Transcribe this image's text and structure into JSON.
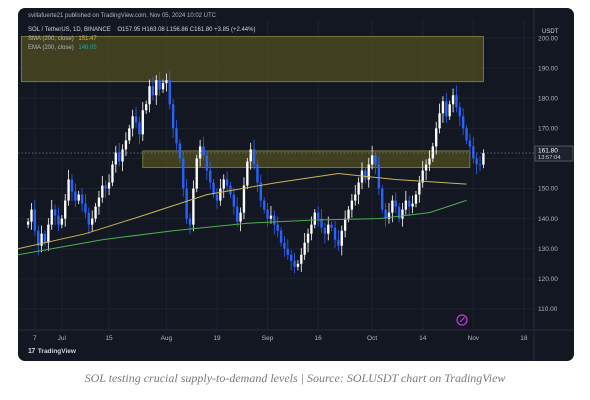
{
  "header": {
    "published": "svillafuerte21 published on TradingView.com, Nov 05, 2024 10:02 UTC",
    "symbol": "SOL / TetherUS, 1D, BINANCE",
    "ohlc": "O157.95 H163.08 L156.86 C161.80 +3.85 (+2.44%)",
    "sma_label": "SMA (200, close)",
    "sma_value": "151.47",
    "ema_label": "EMA (200, close)",
    "ema_value": "146.05",
    "currency": "USDT"
  },
  "price_labels": {
    "last_price": "161.80",
    "countdown": "13:57:04"
  },
  "footer": {
    "logo_mark": "17",
    "logo_text": "TradingView"
  },
  "caption": "SOL testing crucial supply-to-demand levels | Source: SOLUSDT chart on TradingView",
  "colors": {
    "background": "#131722",
    "up_candle": "#ffffff",
    "down_candle": "#2962ff",
    "sma_line": "#c9b458",
    "ema_line": "#4caf50",
    "zone_fill": "#504f22",
    "zone_border": "#8a8a3c",
    "price_line": "#787b86"
  },
  "chart_data": {
    "type": "candlestick",
    "title": "SOL / TetherUS, 1D, BINANCE",
    "y_axis_currency": "USDT",
    "ylim": [
      103,
      206
    ],
    "y_ticks": [
      110,
      120,
      130,
      140,
      150,
      160,
      170,
      180,
      190,
      200
    ],
    "x_start": "2024-06-25",
    "x_end": "2024-11-25",
    "x_ticks": [
      {
        "label": "7",
        "date": "2024-06-30"
      },
      {
        "label": "Jul",
        "date": "2024-07-08"
      },
      {
        "label": "15",
        "date": "2024-07-22"
      },
      {
        "label": "Aug",
        "date": "2024-08-08"
      },
      {
        "label": "19",
        "date": "2024-08-23"
      },
      {
        "label": "Sep",
        "date": "2024-09-07"
      },
      {
        "label": "16",
        "date": "2024-09-22"
      },
      {
        "label": "Oct",
        "date": "2024-10-08"
      },
      {
        "label": "14",
        "date": "2024-10-23"
      },
      {
        "label": "Nov",
        "date": "2024-11-07"
      },
      {
        "label": "18",
        "date": "2024-11-22"
      }
    ],
    "zones": [
      {
        "date_from": "2024-06-26",
        "date_to": "2024-11-10",
        "low": 185.5,
        "high": 200.5
      },
      {
        "date_from": "2024-08-01",
        "date_to": "2024-11-06",
        "low": 157,
        "high": 162.5
      }
    ],
    "last_price": 161.8,
    "series": [
      {
        "name": "SMA (200, close)",
        "points": [
          [
            "2024-06-25",
            130
          ],
          [
            "2024-07-15",
            135
          ],
          [
            "2024-08-01",
            141
          ],
          [
            "2024-08-20",
            148
          ],
          [
            "2024-09-10",
            152
          ],
          [
            "2024-09-28",
            155
          ],
          [
            "2024-10-15",
            153
          ],
          [
            "2024-11-05",
            151.47
          ]
        ]
      },
      {
        "name": "EMA (200, close)",
        "points": [
          [
            "2024-06-25",
            128
          ],
          [
            "2024-07-20",
            133
          ],
          [
            "2024-08-10",
            136
          ],
          [
            "2024-09-01",
            138.5
          ],
          [
            "2024-09-20",
            139.5
          ],
          [
            "2024-10-10",
            140
          ],
          [
            "2024-10-25",
            142
          ],
          [
            "2024-11-05",
            146.05
          ]
        ]
      }
    ],
    "closes": [
      139,
      143,
      136,
      131,
      135,
      132,
      138,
      143,
      141,
      138,
      140,
      146,
      153,
      149,
      146,
      148,
      145,
      142,
      138,
      140,
      144,
      147,
      151,
      150,
      152,
      158,
      162,
      159,
      163,
      166,
      170,
      174,
      172,
      168,
      176,
      178,
      184,
      181,
      186,
      183,
      185,
      186,
      178,
      170,
      165,
      160,
      150,
      140,
      138,
      150,
      160,
      164,
      161,
      156,
      152,
      148,
      146,
      150,
      153,
      151,
      148,
      144,
      139,
      142,
      151,
      159,
      163,
      158,
      152,
      146,
      143,
      140,
      141,
      138,
      136,
      132,
      130,
      128,
      126,
      124,
      125,
      128,
      132,
      135,
      138,
      142,
      140,
      137,
      135,
      138,
      137,
      133,
      131,
      136,
      140,
      143,
      146,
      148,
      152,
      156,
      153,
      158,
      161,
      158,
      150,
      143,
      140,
      142,
      146,
      144,
      140,
      143,
      146,
      144,
      145,
      148,
      152,
      156,
      158,
      160,
      164,
      170,
      175,
      179,
      174,
      178,
      181,
      177,
      174,
      170,
      166,
      164,
      160,
      158,
      157.95,
      161.8
    ]
  }
}
